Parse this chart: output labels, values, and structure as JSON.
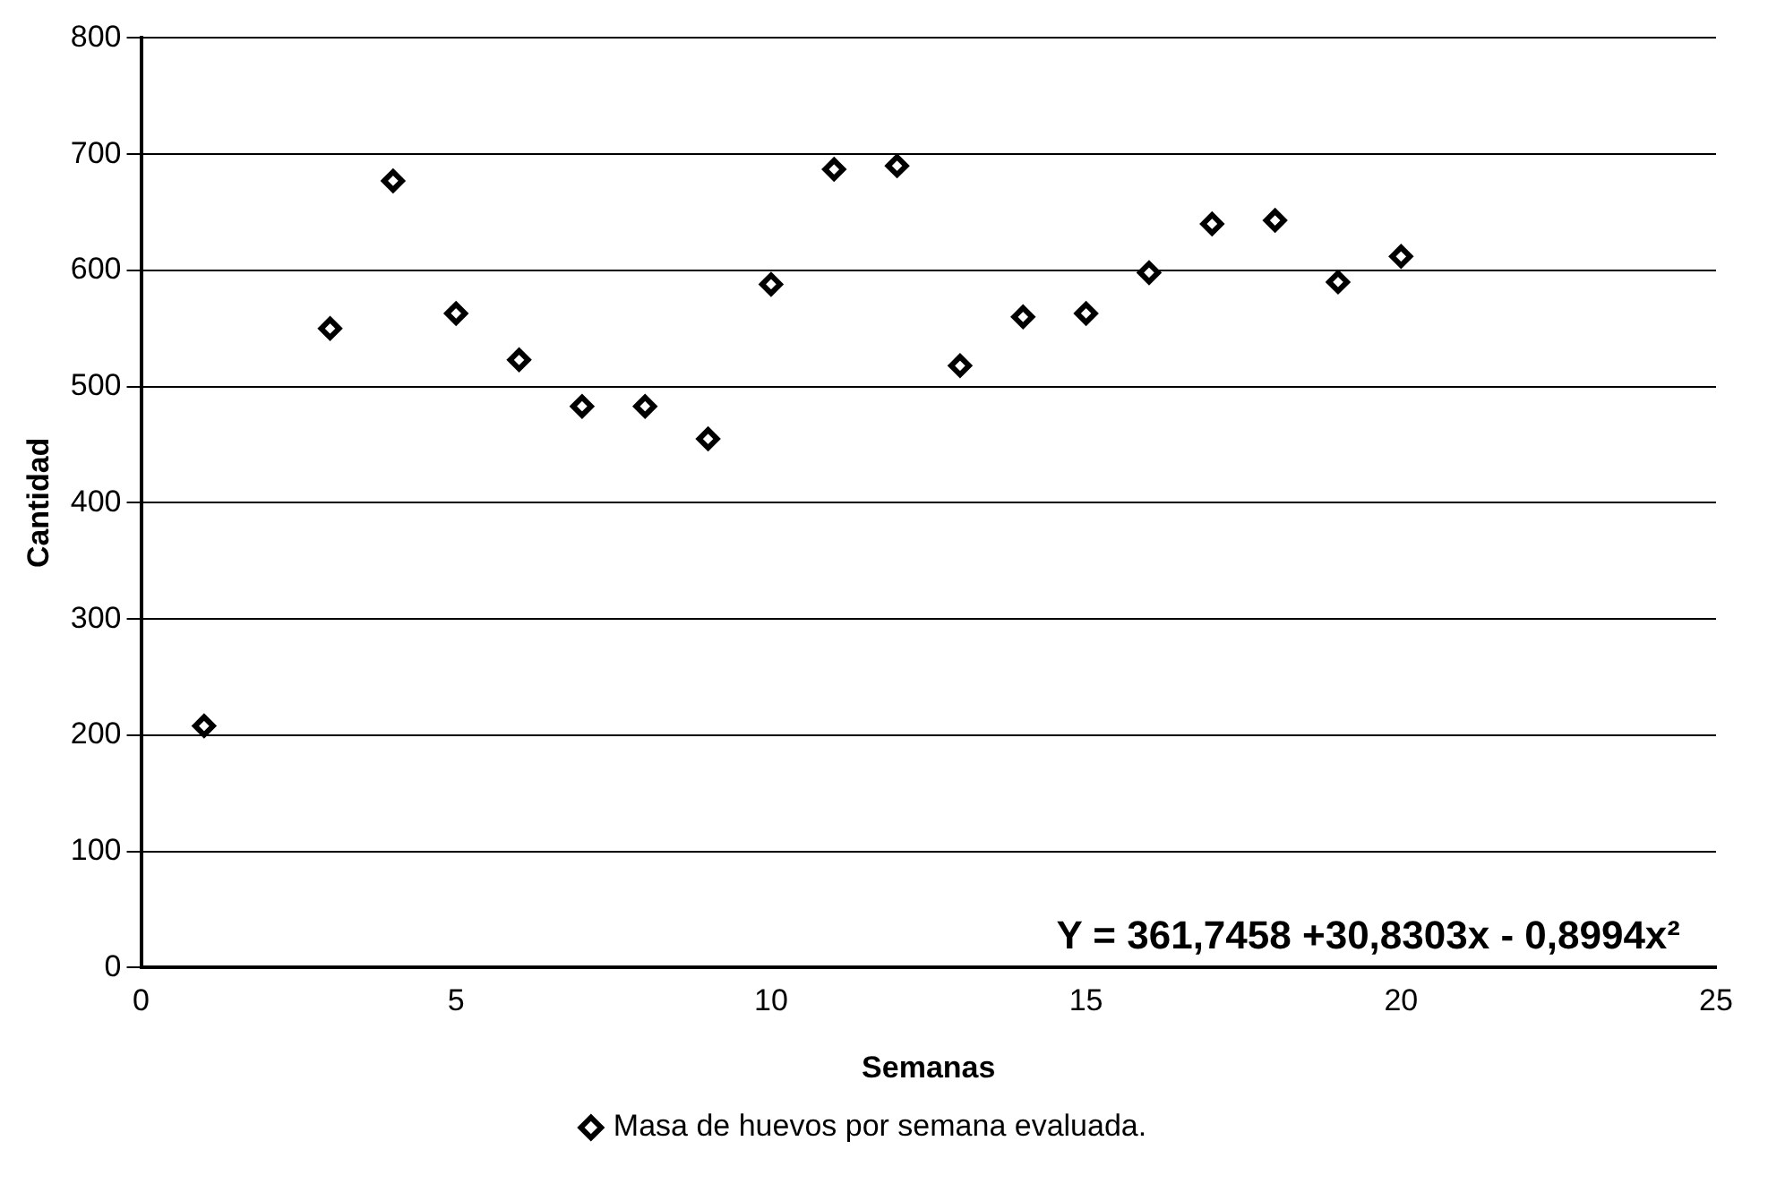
{
  "chart_data": {
    "type": "scatter",
    "xlabel": "Semanas",
    "ylabel": "Cantidad",
    "x": [
      1,
      3,
      4,
      5,
      6,
      7,
      8,
      9,
      10,
      11,
      12,
      13,
      14,
      15,
      16,
      17,
      18,
      19,
      20
    ],
    "series": [
      {
        "name": "Masa de huevos por semana evaluada.",
        "color": "#000000",
        "values": [
          208,
          550,
          677,
          563,
          523,
          483,
          483,
          455,
          588,
          687,
          690,
          518,
          560,
          563,
          598,
          640,
          643,
          590,
          612
        ]
      }
    ],
    "xlim": [
      0,
      25
    ],
    "xticks": [
      0,
      5,
      10,
      15,
      20,
      25
    ],
    "ylim": [
      0,
      800
    ],
    "yticks": [
      0,
      100,
      200,
      300,
      400,
      500,
      600,
      700,
      800
    ],
    "grid": "y",
    "legend": "bottom",
    "marker": "diamond",
    "annotations": [
      "Y = 361,7458 +30,8303x - 0,8994x²"
    ]
  }
}
